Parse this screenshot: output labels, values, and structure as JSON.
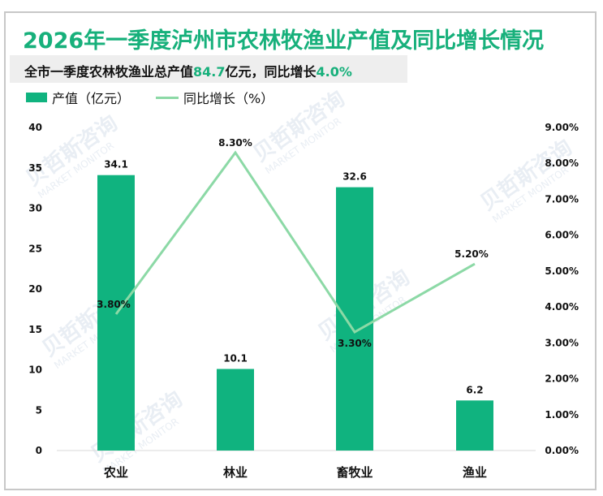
{
  "header": {
    "title": "2026年一季度泸州市农林牧渔业产值及同比增长情况",
    "subtitle_prefix": "全市一季度农林牧渔业总产值",
    "subtitle_value1": "84.7",
    "subtitle_mid": "亿元，同比增长",
    "subtitle_value2": "4.0%"
  },
  "legend": {
    "bar_label": "产值（亿元）",
    "line_label": "同比增长（%）"
  },
  "colors": {
    "accent": "#17b07b",
    "bar": "#10b37f",
    "line": "#8cd9a6",
    "subtitle_bg": "#eeeeee",
    "frame": "#c8c8c8"
  },
  "watermark": {
    "cn": "贝哲斯咨询",
    "en": "MARKET MONITOR"
  },
  "chart_data": {
    "type": "bar",
    "title": "2026年一季度泸州市农林牧渔业产值及同比增长情况",
    "subtitle": "全市一季度农林牧渔业总产值84.7亿元，同比增长4.0%",
    "categories": [
      "农业",
      "林业",
      "畜牧业",
      "渔业"
    ],
    "series": [
      {
        "name": "产值（亿元）",
        "type": "bar",
        "axis": "left",
        "values": [
          34.1,
          10.1,
          32.6,
          6.2
        ],
        "labels": [
          "34.1",
          "10.1",
          "32.6",
          "6.2"
        ]
      },
      {
        "name": "同比增长（%）",
        "type": "line",
        "axis": "right",
        "values": [
          3.8,
          8.3,
          3.3,
          5.2
        ],
        "labels": [
          "3.80%",
          "8.30%",
          "3.30%",
          "5.20%"
        ]
      }
    ],
    "xlabel": "",
    "ylabel": "",
    "ylim": [
      0,
      40
    ],
    "yticks": [
      "0",
      "5",
      "10",
      "15",
      "20",
      "25",
      "30",
      "35",
      "40"
    ],
    "y2lim": [
      0,
      9
    ],
    "y2ticks": [
      "0.00%",
      "1.00%",
      "2.00%",
      "3.00%",
      "4.00%",
      "5.00%",
      "6.00%",
      "7.00%",
      "8.00%",
      "9.00%"
    ],
    "grid": false,
    "legend_position": "top-left"
  }
}
